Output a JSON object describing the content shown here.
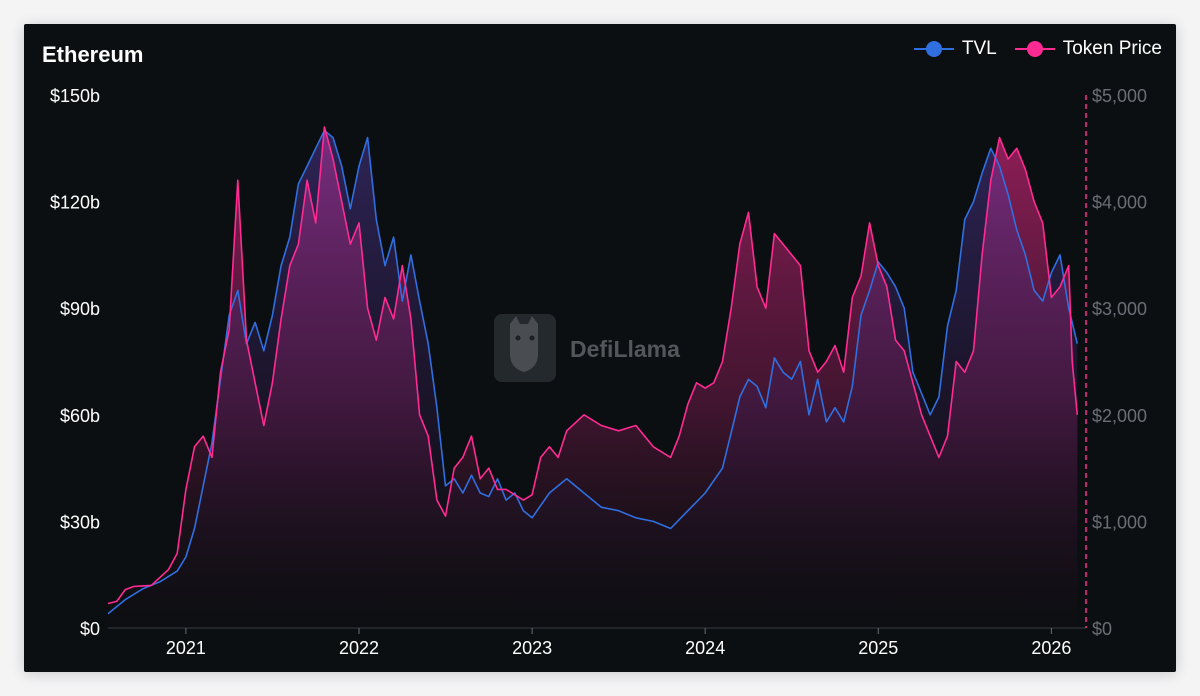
{
  "chart_title": "Ethereum",
  "watermark": {
    "text": "DefiLlama",
    "icon": "llama-logo-icon"
  },
  "colors": {
    "background": "#0b0f11",
    "tvl": "#2f6fe0",
    "price": "#ff2b93",
    "left_axis_text": "#ffffff",
    "right_axis_text": "#6b6f75"
  },
  "legend": [
    {
      "label": "TVL",
      "color": "#2f6fe0"
    },
    {
      "label": "Token Price",
      "color": "#ff2b93"
    }
  ],
  "chart_data": {
    "type": "line",
    "title": "Ethereum",
    "legend_position": "top-right",
    "grid": false,
    "x_range": [
      2020.55,
      2026.2
    ],
    "x_ticks": [
      2021,
      2022,
      2023,
      2024,
      2025,
      2026
    ],
    "x_tick_labels": [
      "2021",
      "2022",
      "2023",
      "2024",
      "2025",
      "2026"
    ],
    "y_left": {
      "range": [
        0,
        150
      ],
      "ticks": [
        0,
        30,
        60,
        90,
        120,
        150
      ],
      "tick_labels": [
        "$0",
        "$30b",
        "$60b",
        "$90b",
        "$120b",
        "$150b"
      ],
      "unit": "billion USD"
    },
    "y_right": {
      "range": [
        0,
        5000
      ],
      "ticks": [
        0,
        1000,
        2000,
        3000,
        4000,
        5000
      ],
      "tick_labels": [
        "$0",
        "$1,000",
        "$2,000",
        "$3,000",
        "$4,000",
        "$5,000"
      ],
      "unit": "USD"
    },
    "series": [
      {
        "name": "TVL",
        "axis": "left",
        "x": [
          2020.55,
          2020.65,
          2020.75,
          2020.85,
          2020.95,
          2021.0,
          2021.05,
          2021.1,
          2021.15,
          2021.2,
          2021.25,
          2021.3,
          2021.35,
          2021.4,
          2021.45,
          2021.5,
          2021.55,
          2021.6,
          2021.65,
          2021.7,
          2021.75,
          2021.8,
          2021.85,
          2021.9,
          2021.95,
          2022.0,
          2022.05,
          2022.1,
          2022.15,
          2022.2,
          2022.25,
          2022.3,
          2022.35,
          2022.4,
          2022.45,
          2022.5,
          2022.55,
          2022.6,
          2022.65,
          2022.7,
          2022.75,
          2022.8,
          2022.85,
          2022.9,
          2022.95,
          2023.0,
          2023.1,
          2023.2,
          2023.3,
          2023.4,
          2023.5,
          2023.6,
          2023.7,
          2023.8,
          2023.9,
          2024.0,
          2024.1,
          2024.15,
          2024.2,
          2024.25,
          2024.3,
          2024.35,
          2024.4,
          2024.45,
          2024.5,
          2024.55,
          2024.6,
          2024.65,
          2024.7,
          2024.75,
          2024.8,
          2024.85,
          2024.9,
          2024.95,
          2025.0,
          2025.05,
          2025.1,
          2025.15,
          2025.2,
          2025.25,
          2025.3,
          2025.35,
          2025.4,
          2025.45,
          2025.5,
          2025.55,
          2025.6,
          2025.65,
          2025.7,
          2025.75,
          2025.8,
          2025.85,
          2025.9,
          2025.95,
          2026.0,
          2026.05,
          2026.1,
          2026.15
        ],
        "values": [
          4,
          8,
          11,
          13,
          16,
          20,
          28,
          40,
          52,
          70,
          88,
          95,
          80,
          86,
          78,
          88,
          102,
          110,
          125,
          130,
          135,
          140,
          138,
          130,
          118,
          130,
          138,
          115,
          102,
          110,
          92,
          105,
          92,
          80,
          62,
          40,
          42,
          38,
          43,
          38,
          37,
          42,
          36,
          38,
          33,
          31,
          38,
          42,
          38,
          34,
          33,
          31,
          30,
          28,
          33,
          38,
          45,
          55,
          65,
          70,
          68,
          62,
          76,
          72,
          70,
          75,
          60,
          70,
          58,
          62,
          58,
          68,
          88,
          95,
          103,
          100,
          96,
          90,
          72,
          66,
          60,
          65,
          85,
          95,
          115,
          120,
          128,
          135,
          130,
          122,
          112,
          105,
          95,
          92,
          100,
          105,
          90,
          80
        ],
        "color": "#2f6fe0"
      },
      {
        "name": "Token Price",
        "axis": "right",
        "x": [
          2020.55,
          2020.6,
          2020.65,
          2020.7,
          2020.8,
          2020.9,
          2020.95,
          2021.0,
          2021.05,
          2021.1,
          2021.15,
          2021.2,
          2021.25,
          2021.3,
          2021.35,
          2021.4,
          2021.45,
          2021.5,
          2021.55,
          2021.6,
          2021.65,
          2021.7,
          2021.75,
          2021.8,
          2021.85,
          2021.9,
          2021.95,
          2022.0,
          2022.05,
          2022.1,
          2022.15,
          2022.2,
          2022.25,
          2022.3,
          2022.35,
          2022.4,
          2022.45,
          2022.5,
          2022.55,
          2022.6,
          2022.65,
          2022.7,
          2022.75,
          2022.8,
          2022.85,
          2022.9,
          2022.95,
          2023.0,
          2023.05,
          2023.1,
          2023.15,
          2023.2,
          2023.3,
          2023.4,
          2023.5,
          2023.6,
          2023.7,
          2023.8,
          2023.85,
          2023.9,
          2023.95,
          2024.0,
          2024.05,
          2024.1,
          2024.15,
          2024.2,
          2024.25,
          2024.3,
          2024.35,
          2024.4,
          2024.45,
          2024.5,
          2024.55,
          2024.6,
          2024.65,
          2024.7,
          2024.75,
          2024.8,
          2024.85,
          2024.9,
          2024.95,
          2025.0,
          2025.05,
          2025.1,
          2025.15,
          2025.2,
          2025.25,
          2025.3,
          2025.35,
          2025.4,
          2025.45,
          2025.5,
          2025.55,
          2025.6,
          2025.65,
          2025.7,
          2025.75,
          2025.8,
          2025.85,
          2025.9,
          2025.95,
          2026.0,
          2026.05,
          2026.1,
          2026.12,
          2026.15
        ],
        "values": [
          230,
          250,
          360,
          390,
          400,
          550,
          700,
          1300,
          1700,
          1800,
          1600,
          2400,
          2800,
          4200,
          2700,
          2300,
          1900,
          2300,
          2900,
          3400,
          3600,
          4200,
          3800,
          4700,
          4400,
          4000,
          3600,
          3800,
          3000,
          2700,
          3100,
          2900,
          3400,
          2900,
          2000,
          1800,
          1200,
          1050,
          1500,
          1600,
          1800,
          1400,
          1500,
          1300,
          1300,
          1250,
          1200,
          1250,
          1600,
          1700,
          1600,
          1850,
          2000,
          1900,
          1850,
          1900,
          1700,
          1600,
          1800,
          2100,
          2300,
          2250,
          2300,
          2500,
          3000,
          3600,
          3900,
          3200,
          3000,
          3700,
          3600,
          3500,
          3400,
          2600,
          2400,
          2500,
          2650,
          2400,
          3100,
          3300,
          3800,
          3400,
          3200,
          2700,
          2600,
          2300,
          2000,
          1800,
          1600,
          1800,
          2500,
          2400,
          2600,
          3500,
          4200,
          4600,
          4400,
          4500,
          4300,
          4000,
          3800,
          3100,
          3200,
          3400,
          2500,
          2000
        ],
        "color": "#ff2b93"
      }
    ]
  }
}
